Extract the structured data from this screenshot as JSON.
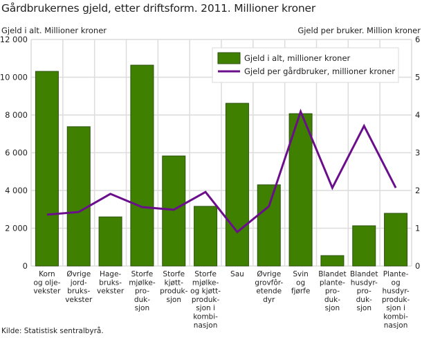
{
  "header": {
    "title": "Gårdbrukernes gjeld, etter driftsform. 2011. Millioner kroner",
    "left_axis_title": "Gjeld i alt. Millioner kroner",
    "right_axis_title": "Gjeld per bruker. Million kroner"
  },
  "footer": {
    "source": "Kilde: Statistisk sentralbyrå."
  },
  "colors": {
    "bar_fill": "#3f8000",
    "bar_stroke": "#2c5210",
    "line": "#6b0e8c",
    "grid": "#dcdcdc"
  },
  "chart_data": {
    "type": "bar+line",
    "title": "Gårdbrukernes gjeld, etter driftsform. 2011. Millioner kroner",
    "xlabel": "",
    "ylabel": "Gjeld i alt. Millioner kroner",
    "y2label": "Gjeld per bruker. Million kroner",
    "ylim": [
      0,
      12000
    ],
    "y2lim": [
      0,
      6
    ],
    "yticks": [
      "0",
      "2 000",
      "4 000",
      "6 000",
      "8 000",
      "10 000",
      "12 000"
    ],
    "y2ticks": [
      "0",
      "1",
      "2",
      "3",
      "4",
      "5",
      "6"
    ],
    "grid": true,
    "legend_position": "top-right inside",
    "categories": [
      [
        "Korn",
        "og olje-",
        "vekster"
      ],
      [
        "Øvrige",
        "jord-",
        "bruks-",
        "vekster"
      ],
      [
        "Hage-",
        "bruks-",
        "vekster"
      ],
      [
        "Storfe",
        "mjølke-",
        "pro-",
        "duk-",
        "sjon"
      ],
      [
        "Storfe",
        "kjøtt-",
        "produk-",
        "sjon"
      ],
      [
        "Storfe",
        "mjølke-",
        "og kjøtt-",
        "produk-",
        "sjon i",
        "kombi-",
        "nasjon"
      ],
      [
        "Sau"
      ],
      [
        "Øvrige",
        "grovfôr-",
        "etende",
        "dyr"
      ],
      [
        "Svin",
        "og",
        "fjørfe"
      ],
      [
        "Blandet",
        "plante-",
        "pro-",
        "duk-",
        "sjon"
      ],
      [
        "Blandet",
        "husdyr-",
        "pro-",
        "duk-",
        "sjon"
      ],
      [
        "Plante-",
        "og",
        "husdyr-",
        "produk-",
        "sjon i",
        "kombi-",
        "nasjon"
      ]
    ],
    "series": [
      {
        "name": "Gjeld i alt, millioner kroner",
        "type": "bar",
        "axis": "left",
        "values": [
          10310,
          7380,
          2600,
          10640,
          5830,
          3160,
          8620,
          4300,
          8070,
          550,
          2130,
          2790
        ]
      },
      {
        "name": "Gjeld per gårdbruker, millioner kroner",
        "type": "line",
        "axis": "right",
        "values": [
          1.36,
          1.43,
          1.91,
          1.56,
          1.49,
          1.96,
          0.9,
          1.58,
          4.09,
          2.07,
          3.71,
          2.07
        ]
      }
    ]
  }
}
